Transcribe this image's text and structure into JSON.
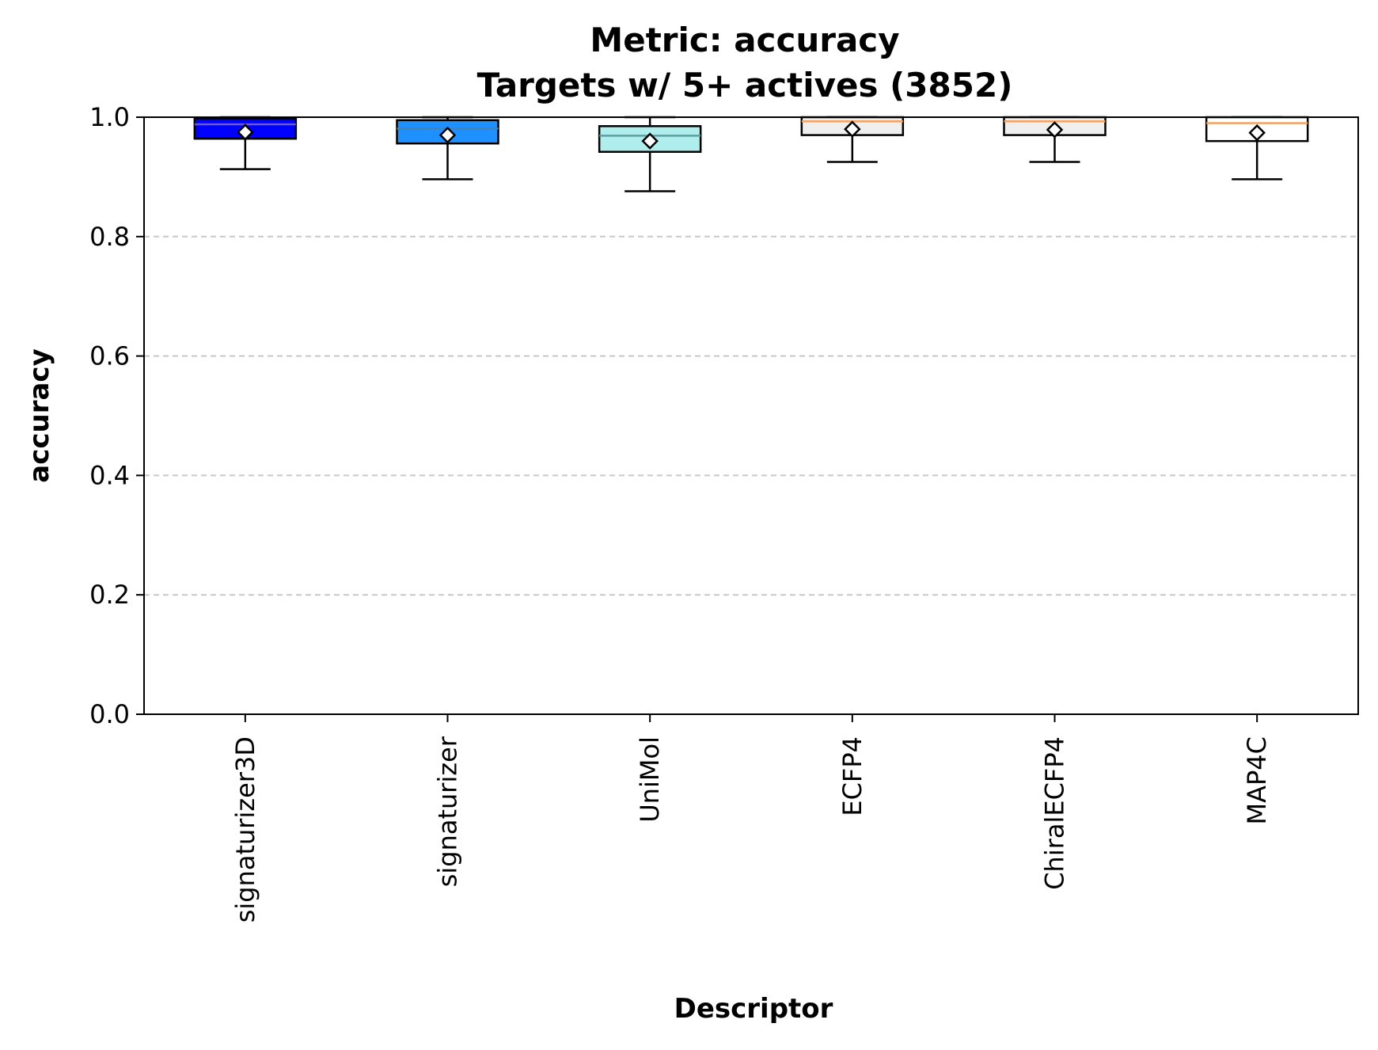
{
  "chart_data": {
    "type": "box",
    "title": "Metric: accuracy",
    "subtitle": "Targets w/ 5+ actives (3852)",
    "xlabel": "Descriptor",
    "ylabel": "accuracy",
    "ylim": [
      0.0,
      1.0
    ],
    "yticks": [
      "0.0",
      "0.2",
      "0.4",
      "0.6",
      "0.8",
      "1.0"
    ],
    "grid": "y-dashed",
    "categories": [
      "signaturizer3D",
      "signaturizer",
      "UniMol",
      "ECFP4",
      "ChiralECFP4",
      "MAP4C"
    ],
    "series": [
      {
        "category": "signaturizer3D",
        "whisker_low": 0.913,
        "q1": 0.964,
        "median": 0.988,
        "q3": 0.998,
        "whisker_high": 1.0,
        "mean": 0.975,
        "color": "#0000ff",
        "median_color": "#6a5acd"
      },
      {
        "category": "signaturizer",
        "whisker_low": 0.896,
        "q1": 0.956,
        "median": 0.981,
        "q3": 0.995,
        "whisker_high": 1.0,
        "mean": 0.97,
        "color": "#1e90ff",
        "median_color": "#4682b4"
      },
      {
        "category": "UniMol",
        "whisker_low": 0.876,
        "q1": 0.942,
        "median": 0.969,
        "q3": 0.985,
        "whisker_high": 1.0,
        "mean": 0.96,
        "color": "#b0eeee",
        "median_color": "#5f9ea0"
      },
      {
        "category": "ECFP4",
        "whisker_low": 0.925,
        "q1": 0.97,
        "median": 0.993,
        "q3": 1.0,
        "whisker_high": 1.0,
        "mean": 0.98,
        "color": "#efefef",
        "median_color": "#f4a460"
      },
      {
        "category": "ChiralECFP4",
        "whisker_low": 0.925,
        "q1": 0.97,
        "median": 0.993,
        "q3": 1.0,
        "whisker_high": 1.0,
        "mean": 0.979,
        "color": "#efefef",
        "median_color": "#f4a460"
      },
      {
        "category": "MAP4C",
        "whisker_low": 0.896,
        "q1": 0.96,
        "median": 0.99,
        "q3": 1.0,
        "whisker_high": 1.0,
        "mean": 0.974,
        "color": "#ffffff",
        "median_color": "#f4a460"
      }
    ]
  }
}
